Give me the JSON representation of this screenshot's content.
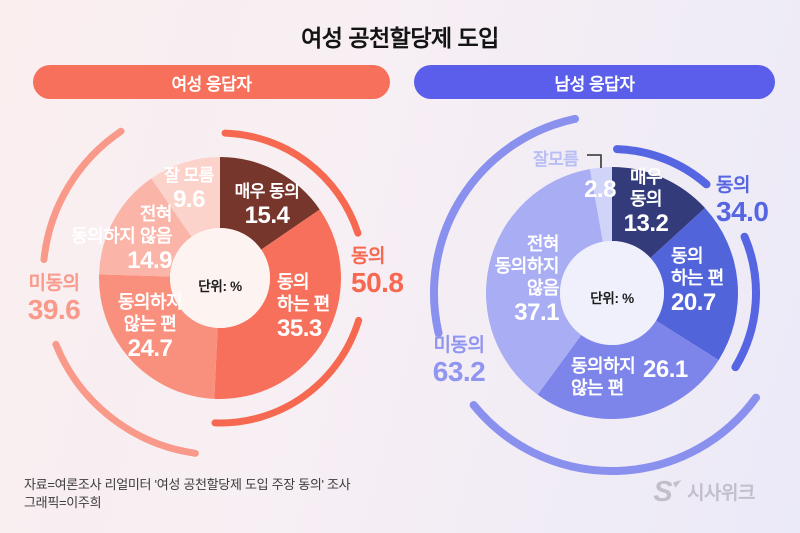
{
  "title": "여성 공천할당제 도입",
  "unit_label": "단위: %",
  "footer": {
    "source": "자료=여론조사 리얼미터 '여성 공천할당제 도입 주장 동의' 조사",
    "credit": "그래픽=이주희",
    "logo": "시사위크"
  },
  "chart_data": [
    {
      "type": "donut",
      "group": "여성 응답자",
      "accent": "#F7705B",
      "unit": "단위: %",
      "segments": [
        {
          "label": "매우 동의",
          "label_lines": [
            "매우 동의"
          ],
          "value": 15.4,
          "display": "15.4",
          "color": "#76362C"
        },
        {
          "label": "동의하는 편",
          "label_lines": [
            "동의",
            "하는 편"
          ],
          "value": 35.3,
          "display": "35.3",
          "color": "#F7705B"
        },
        {
          "label": "동의하지 않는 편",
          "label_lines": [
            "동의하지",
            "않는 편"
          ],
          "value": 24.7,
          "display": "24.7",
          "color": "#F9907E"
        },
        {
          "label": "전혀 동의하지 않음",
          "label_lines": [
            "전혀",
            "동의하지 않음"
          ],
          "value": 14.9,
          "display": "14.9",
          "color": "#FBB4A8"
        },
        {
          "label": "잘 모름",
          "label_lines": [
            "잘 모름"
          ],
          "value": 9.6,
          "display": "9.6",
          "color": "#FCD3CA"
        }
      ],
      "summary": {
        "agree": {
          "label": "동의",
          "value": 50.8,
          "display": "50.8",
          "color": "#F6684F"
        },
        "disagree": {
          "label": "미동의",
          "value": 39.6,
          "display": "39.6",
          "color": "#F9998A"
        }
      }
    },
    {
      "type": "donut",
      "group": "남성 응답자",
      "accent": "#5A5EEA",
      "unit": "단위: %",
      "segments": [
        {
          "label": "매우 동의",
          "label_lines": [
            "매우",
            "동의"
          ],
          "value": 13.2,
          "display": "13.2",
          "color": "#333B7B"
        },
        {
          "label": "동의하는 편",
          "label_lines": [
            "동의",
            "하는 편"
          ],
          "value": 20.7,
          "display": "20.7",
          "color": "#5164DA"
        },
        {
          "label": "동의하지 않는 편",
          "label_lines": [
            "동의하지",
            "않는 편"
          ],
          "value": 26.1,
          "display": "26.1",
          "color": "#7E85EA"
        },
        {
          "label": "전혀 동의하지 않음",
          "label_lines": [
            "전혀",
            "동의하지",
            "않음"
          ],
          "value": 37.1,
          "display": "37.1",
          "color": "#A9ADF3"
        },
        {
          "label": "잘모름",
          "label_lines": [
            "잘모름"
          ],
          "value": 2.8,
          "display": "2.8",
          "color": "#D1D4F9"
        }
      ],
      "summary": {
        "agree": {
          "label": "동의",
          "value": 34.0,
          "display": "34.0",
          "color": "#5666E2"
        },
        "disagree": {
          "label": "미동의",
          "value": 63.2,
          "display": "63.2",
          "color": "#8A90EE"
        }
      }
    }
  ]
}
